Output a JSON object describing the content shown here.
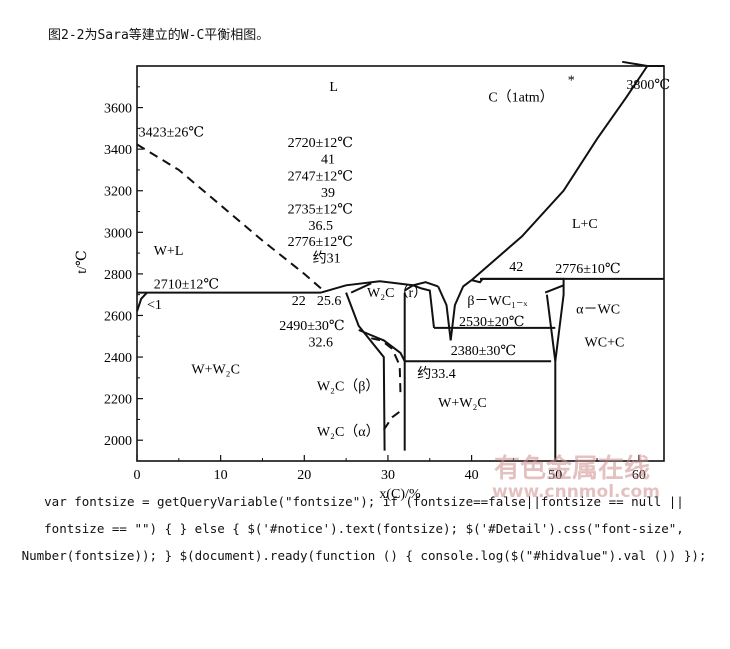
{
  "caption": "图2-2为Sara等建立的W-C平衡相图。",
  "chart_data": {
    "type": "phase-diagram",
    "xlabel": "x(C)/%",
    "ylabel": "t/℃",
    "xlim": [
      0,
      63
    ],
    "ylim": [
      1900,
      3800
    ],
    "xticks": [
      0,
      10,
      20,
      30,
      40,
      50,
      60
    ],
    "yticks": [
      2000,
      2200,
      2400,
      2600,
      2800,
      3000,
      3200,
      3400,
      3600
    ],
    "grid": false,
    "solid_curves": [
      {
        "points": [
          [
            0,
            2710
          ],
          [
            22,
            2710
          ]
        ]
      },
      {
        "points": [
          [
            0,
            2620
          ],
          [
            0.5,
            2680
          ],
          [
            1.2,
            2710
          ]
        ]
      },
      {
        "points": [
          [
            22,
            2710
          ],
          [
            25,
            2745
          ],
          [
            29,
            2765
          ],
          [
            33,
            2745
          ]
        ]
      },
      {
        "points": [
          [
            25.6,
            2710
          ],
          [
            28,
            2755
          ]
        ]
      },
      {
        "points": [
          [
            25,
            2710
          ],
          [
            26.5,
            2550
          ],
          [
            29.5,
            2400
          ],
          [
            29.6,
            1950
          ]
        ]
      },
      {
        "points": [
          [
            26.5,
            2530
          ],
          [
            29.5,
            2480
          ],
          [
            31.5,
            2420
          ],
          [
            32,
            2380
          ]
        ]
      },
      {
        "points": [
          [
            32,
            2710
          ],
          [
            32,
            1950
          ]
        ]
      },
      {
        "points": [
          [
            33,
            2745
          ],
          [
            34,
            2730
          ],
          [
            35,
            2720
          ],
          [
            35.5,
            2540
          ]
        ]
      },
      {
        "points": [
          [
            32,
            2720
          ],
          [
            33,
            2745
          ],
          [
            34.5,
            2760
          ],
          [
            36,
            2740
          ]
        ]
      },
      {
        "points": [
          [
            35.5,
            2540
          ],
          [
            50,
            2540
          ]
        ]
      },
      {
        "points": [
          [
            36,
            2740
          ],
          [
            37,
            2650
          ],
          [
            37.5,
            2480
          ],
          [
            38,
            2650
          ],
          [
            39,
            2740
          ],
          [
            40,
            2770
          ]
        ]
      },
      {
        "points": [
          [
            40,
            2770
          ],
          [
            41,
            2760
          ],
          [
            41.3,
            2776
          ],
          [
            52,
            2776
          ],
          [
            63,
            2776
          ]
        ]
      },
      {
        "points": [
          [
            41,
            2776
          ],
          [
            51,
            2776
          ],
          [
            51,
            2700
          ],
          [
            50,
            2380
          ]
        ]
      },
      {
        "points": [
          [
            32,
            2380
          ],
          [
            49.5,
            2380
          ]
        ]
      },
      {
        "points": [
          [
            49,
            2700
          ],
          [
            50,
            2380
          ],
          [
            50,
            1900
          ]
        ]
      },
      {
        "points": [
          [
            48.8,
            2710
          ],
          [
            51,
            2745
          ]
        ]
      },
      {
        "points": [
          [
            40,
            2770
          ],
          [
            46,
            2980
          ],
          [
            51,
            3200
          ],
          [
            55,
            3450
          ],
          [
            58.5,
            3650
          ],
          [
            61,
            3800
          ]
        ]
      },
      {
        "points": [
          [
            58,
            3820
          ],
          [
            61,
            3800
          ],
          [
            63,
            3800
          ]
        ]
      }
    ],
    "dashed_curves": [
      {
        "points": [
          [
            0,
            3423
          ],
          [
            5,
            3300
          ],
          [
            10,
            3130
          ],
          [
            15,
            2960
          ],
          [
            20,
            2800
          ],
          [
            22,
            2730
          ]
        ]
      },
      {
        "points": [
          [
            28,
            2490
          ],
          [
            29.2,
            2480
          ],
          [
            30.5,
            2440
          ],
          [
            31.4,
            2360
          ],
          [
            31.5,
            2220
          ]
        ]
      },
      {
        "points": [
          [
            29.5,
            2050
          ],
          [
            30.5,
            2110
          ],
          [
            31.5,
            2140
          ]
        ]
      }
    ],
    "annotations": [
      {
        "text": "L",
        "x": 23,
        "y": 3680
      },
      {
        "text": "C（1atm）",
        "x": 42,
        "y": 3630
      },
      {
        "text": "*",
        "x": 51.5,
        "y": 3710
      },
      {
        "text": "3800℃",
        "x": 58.5,
        "y": 3690
      },
      {
        "text": "3423±26℃",
        "x": 0.2,
        "y": 3460
      },
      {
        "text": "2720±12℃",
        "x": 18,
        "y": 3410
      },
      {
        "text": "41",
        "x": 22,
        "y": 3330
      },
      {
        "text": "2747±12℃",
        "x": 18,
        "y": 3250
      },
      {
        "text": "39",
        "x": 22,
        "y": 3170
      },
      {
        "text": "2735±12℃",
        "x": 18,
        "y": 3090
      },
      {
        "text": "36.5",
        "x": 20.5,
        "y": 3010
      },
      {
        "text": "2776±12℃",
        "x": 18,
        "y": 2935
      },
      {
        "text": "约31",
        "x": 21,
        "y": 2855
      },
      {
        "text": "L+C",
        "x": 52,
        "y": 3020
      },
      {
        "text": "W+L",
        "x": 2,
        "y": 2890
      },
      {
        "text": "42",
        "x": 44.5,
        "y": 2815
      },
      {
        "text": "2776±10℃",
        "x": 50,
        "y": 2805
      },
      {
        "text": "2710±12℃",
        "x": 2,
        "y": 2730
      },
      {
        "text": "<1",
        "x": 1.2,
        "y": 2630
      },
      {
        "text": "22",
        "x": 18.5,
        "y": 2650
      },
      {
        "text": "25.6",
        "x": 21.5,
        "y": 2650
      },
      {
        "text": "W₂C（r）",
        "x": 27.5,
        "y": 2690
      },
      {
        "text": "β－WC₁₋ₓ",
        "x": 39.5,
        "y": 2650
      },
      {
        "text": "α－WC",
        "x": 52.5,
        "y": 2610
      },
      {
        "text": "2490±30℃",
        "x": 17,
        "y": 2530
      },
      {
        "text": "2530±20℃",
        "x": 38.5,
        "y": 2550
      },
      {
        "text": "32.6",
        "x": 20.5,
        "y": 2450
      },
      {
        "text": "WC+C",
        "x": 53.5,
        "y": 2450
      },
      {
        "text": "2380±30℃",
        "x": 37.5,
        "y": 2410
      },
      {
        "text": "W+W₂C",
        "x": 6.5,
        "y": 2320
      },
      {
        "text": "约33.4",
        "x": 33.5,
        "y": 2300
      },
      {
        "text": "W₂C（β）",
        "x": 21.5,
        "y": 2240
      },
      {
        "text": "W+W₂C",
        "x": 36,
        "y": 2160
      },
      {
        "text": "W₂C（α）",
        "x": 21.5,
        "y": 2020
      }
    ]
  },
  "watermark": {
    "line1": "有色金属在线",
    "line2": "www.cnnmol.com",
    "color": "#d9a0a0"
  },
  "code_text": "var fontsize = getQueryVariable(\"fontsize\"); if (fontsize==false||fontsize == null || fontsize == \"\") { } else { $('#notice').text(fontsize); $('#Detail').css(\"font-size\", Number(fontsize)); } $(document).ready(function () { console.log($(\"#hidvalue\").val ()) });"
}
